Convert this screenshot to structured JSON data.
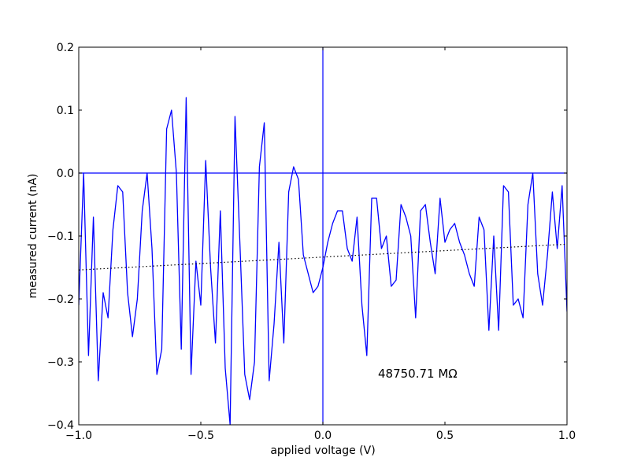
{
  "chart_data": {
    "type": "line",
    "title": "",
    "xlabel": "applied voltage (V)",
    "ylabel": "measured current (nA)",
    "xlim": [
      -1.0,
      1.0
    ],
    "ylim": [
      -0.4,
      0.2
    ],
    "x_ticks": [
      -1.0,
      -0.5,
      0.0,
      0.5,
      1.0
    ],
    "x_tick_labels": [
      "−1.0",
      "−0.5",
      "0.0",
      "0.5",
      "1.0"
    ],
    "y_ticks": [
      -0.4,
      -0.3,
      -0.2,
      -0.1,
      0.0,
      0.1,
      0.2
    ],
    "y_tick_labels": [
      "−0.4",
      "−0.3",
      "−0.2",
      "−0.1",
      "0.0",
      "0.1",
      "0.2"
    ],
    "grid": false,
    "annotation": "48750.71 MΩ",
    "colors": {
      "series": "#0000ff",
      "fit": "#000000",
      "axes": "#000000"
    },
    "series": [
      {
        "style": "solid",
        "x": [
          -1.0,
          -0.98,
          -0.96,
          -0.94,
          -0.92,
          -0.9,
          -0.88,
          -0.86,
          -0.84,
          -0.82,
          -0.8,
          -0.78,
          -0.76,
          -0.74,
          -0.72,
          -0.7,
          -0.68,
          -0.66,
          -0.64,
          -0.62,
          -0.6,
          -0.58,
          -0.56,
          -0.54,
          -0.52,
          -0.5,
          -0.48,
          -0.46,
          -0.44,
          -0.42,
          -0.4,
          -0.38,
          -0.36,
          -0.34,
          -0.32,
          -0.3,
          -0.28,
          -0.26,
          -0.24,
          -0.22,
          -0.2,
          -0.18,
          -0.16,
          -0.14,
          -0.12,
          -0.1,
          -0.08,
          -0.06,
          -0.04,
          -0.02,
          0.0,
          0.02,
          0.04,
          0.06,
          0.08,
          0.1,
          0.12,
          0.14,
          0.16,
          0.18,
          0.2,
          0.22,
          0.24,
          0.26,
          0.28,
          0.3,
          0.32,
          0.34,
          0.36,
          0.38,
          0.4,
          0.42,
          0.44,
          0.46,
          0.48,
          0.5,
          0.52,
          0.54,
          0.56,
          0.58,
          0.6,
          0.62,
          0.64,
          0.66,
          0.68,
          0.7,
          0.72,
          0.74,
          0.76,
          0.78,
          0.8,
          0.82,
          0.84,
          0.86,
          0.88,
          0.9,
          0.92,
          0.94,
          0.96,
          0.98,
          1.0
        ],
        "y": [
          -0.21,
          0.0,
          -0.29,
          -0.07,
          -0.33,
          -0.19,
          -0.23,
          -0.09,
          -0.02,
          -0.03,
          -0.19,
          -0.26,
          -0.2,
          -0.06,
          0.0,
          -0.12,
          -0.32,
          -0.28,
          0.07,
          0.1,
          0.0,
          -0.28,
          0.12,
          -0.32,
          -0.14,
          -0.21,
          0.02,
          -0.15,
          -0.27,
          -0.06,
          -0.31,
          -0.4,
          0.09,
          -0.11,
          -0.32,
          -0.36,
          -0.3,
          0.01,
          0.08,
          -0.33,
          -0.24,
          -0.11,
          -0.27,
          -0.03,
          0.01,
          -0.01,
          -0.13,
          -0.16,
          -0.19,
          -0.18,
          -0.15,
          -0.11,
          -0.08,
          -0.06,
          -0.06,
          -0.12,
          -0.14,
          -0.07,
          -0.21,
          -0.29,
          -0.04,
          -0.04,
          -0.12,
          -0.1,
          -0.18,
          -0.17,
          -0.05,
          -0.07,
          -0.1,
          -0.23,
          -0.06,
          -0.05,
          -0.11,
          -0.16,
          -0.04,
          -0.11,
          -0.09,
          -0.08,
          -0.11,
          -0.13,
          -0.16,
          -0.18,
          -0.07,
          -0.09,
          -0.25,
          -0.1,
          -0.25,
          -0.02,
          -0.03,
          -0.21,
          -0.2,
          -0.23,
          -0.05,
          0.0,
          -0.16,
          -0.21,
          -0.13,
          -0.03,
          -0.12,
          -0.02,
          -0.22
        ]
      },
      {
        "style": "dotted",
        "x": [
          -1.0,
          1.0
        ],
        "y": [
          -0.154,
          -0.113
        ]
      }
    ],
    "reference_lines": [
      {
        "orientation": "horizontal",
        "value": 0.0
      },
      {
        "orientation": "vertical",
        "value": 0.0
      }
    ]
  }
}
